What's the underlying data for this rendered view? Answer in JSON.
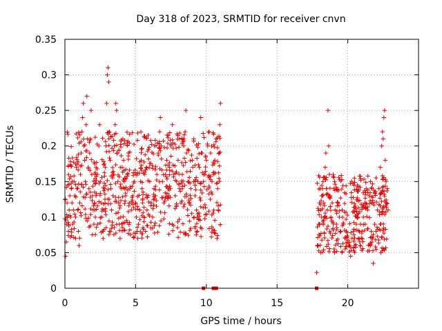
{
  "chart_data": {
    "type": "scatter",
    "title": "Day 318 of 2023, SRMTID for receiver cnvn",
    "xlabel": "GPS time / hours",
    "ylabel": "SRMTID / TECUs",
    "xlim": [
      0,
      25
    ],
    "ylim": [
      0,
      0.35
    ],
    "x_ticks": [
      0,
      5,
      10,
      15,
      20
    ],
    "x_tick_labels": [
      "0",
      "5",
      "10",
      "15",
      "20"
    ],
    "y_ticks": [
      0,
      0.05,
      0.1,
      0.15,
      0.2,
      0.25,
      0.3,
      0.35
    ],
    "y_tick_labels": [
      "0",
      "0.05",
      "0.1",
      "0.15",
      "0.2",
      "0.25",
      "0.3",
      "0.35"
    ],
    "grid": true,
    "marker": "plus",
    "series": [
      {
        "name": "SRMTID",
        "color": "#e00000",
        "points": [
          [
            0.05,
            0.045
          ],
          [
            0.1,
            0.065
          ],
          [
            0.12,
            0.09
          ],
          [
            0.15,
            0.12
          ],
          [
            0.2,
            0.1
          ],
          [
            0.25,
            0.08
          ],
          [
            0.3,
            0.11
          ],
          [
            0.35,
            0.13
          ],
          [
            0.4,
            0.1
          ],
          [
            0.45,
            0.14
          ],
          [
            0.5,
            0.12
          ],
          [
            0.55,
            0.09
          ],
          [
            0.6,
            0.11
          ],
          [
            0.65,
            0.15
          ],
          [
            0.7,
            0.13
          ],
          [
            0.75,
            0.1
          ],
          [
            0.8,
            0.17
          ],
          [
            0.85,
            0.14
          ],
          [
            0.9,
            0.11
          ],
          [
            0.95,
            0.08
          ],
          [
            1.0,
            0.06
          ],
          [
            1.05,
            0.12
          ],
          [
            1.1,
            0.16
          ],
          [
            1.15,
            0.19
          ],
          [
            1.2,
            0.22
          ],
          [
            1.25,
            0.24
          ],
          [
            1.3,
            0.26
          ],
          [
            1.35,
            0.2
          ],
          [
            1.4,
            0.18
          ],
          [
            1.45,
            0.15
          ],
          [
            1.5,
            0.23
          ],
          [
            1.55,
            0.27
          ],
          [
            1.6,
            0.21
          ],
          [
            1.65,
            0.17
          ],
          [
            1.7,
            0.14
          ],
          [
            1.75,
            0.19
          ],
          [
            1.8,
            0.21
          ],
          [
            1.85,
            0.25
          ],
          [
            1.9,
            0.16
          ],
          [
            1.95,
            0.13
          ],
          [
            2.0,
            0.11
          ],
          [
            2.05,
            0.09
          ],
          [
            2.1,
            0.12
          ],
          [
            2.15,
            0.1
          ],
          [
            2.2,
            0.13
          ],
          [
            2.3,
            0.16
          ],
          [
            2.4,
            0.2
          ],
          [
            2.45,
            0.23
          ],
          [
            2.5,
            0.15
          ],
          [
            2.55,
            0.12
          ],
          [
            2.6,
            0.1
          ],
          [
            2.65,
            0.08
          ],
          [
            2.7,
            0.07
          ],
          [
            2.75,
            0.11
          ],
          [
            2.8,
            0.14
          ],
          [
            2.85,
            0.17
          ],
          [
            2.9,
            0.2
          ],
          [
            2.95,
            0.26
          ],
          [
            3.0,
            0.3
          ],
          [
            3.05,
            0.31
          ],
          [
            3.1,
            0.29
          ],
          [
            3.15,
            0.22
          ],
          [
            3.2,
            0.18
          ],
          [
            3.25,
            0.14
          ],
          [
            3.3,
            0.11
          ],
          [
            3.4,
            0.13
          ],
          [
            3.45,
            0.16
          ],
          [
            3.5,
            0.2
          ],
          [
            3.55,
            0.23
          ],
          [
            3.6,
            0.26
          ],
          [
            3.65,
            0.25
          ],
          [
            3.7,
            0.19
          ],
          [
            3.75,
            0.15
          ],
          [
            3.8,
            0.12
          ],
          [
            3.85,
            0.09
          ],
          [
            3.9,
            0.07
          ],
          [
            3.95,
            0.1
          ],
          [
            4.0,
            0.14
          ],
          [
            4.05,
            0.17
          ],
          [
            4.1,
            0.21
          ],
          [
            4.15,
            0.18
          ],
          [
            4.2,
            0.15
          ],
          [
            4.3,
            0.13
          ],
          [
            4.4,
            0.16
          ],
          [
            4.5,
            0.19
          ],
          [
            4.6,
            0.14
          ],
          [
            4.7,
            0.11
          ],
          [
            4.8,
            0.13
          ],
          [
            4.9,
            0.15
          ],
          [
            5.0,
            0.12
          ],
          [
            5.05,
            0.1
          ],
          [
            5.1,
            0.08
          ],
          [
            5.15,
            0.07
          ],
          [
            5.2,
            0.09
          ],
          [
            5.3,
            0.11
          ],
          [
            5.35,
            0.15
          ],
          [
            5.4,
            0.18
          ],
          [
            5.45,
            0.14
          ],
          [
            5.5,
            0.12
          ],
          [
            5.6,
            0.1
          ],
          [
            5.7,
            0.08
          ],
          [
            5.8,
            0.11
          ],
          [
            5.9,
            0.13
          ],
          [
            6.0,
            0.15
          ],
          [
            6.1,
            0.12
          ],
          [
            6.2,
            0.1
          ],
          [
            6.3,
            0.14
          ],
          [
            6.4,
            0.13
          ],
          [
            6.5,
            0.16
          ],
          [
            6.6,
            0.19
          ],
          [
            6.7,
            0.22
          ],
          [
            6.75,
            0.24
          ],
          [
            6.8,
            0.2
          ],
          [
            6.9,
            0.15
          ],
          [
            7.0,
            0.12
          ],
          [
            7.1,
            0.16
          ],
          [
            7.2,
            0.18
          ],
          [
            7.3,
            0.14
          ],
          [
            7.4,
            0.17
          ],
          [
            7.5,
            0.2
          ],
          [
            7.6,
            0.23
          ],
          [
            7.7,
            0.16
          ],
          [
            7.8,
            0.13
          ],
          [
            7.9,
            0.15
          ],
          [
            8.0,
            0.18
          ],
          [
            8.1,
            0.14
          ],
          [
            8.2,
            0.12
          ],
          [
            8.3,
            0.16
          ],
          [
            8.4,
            0.2
          ],
          [
            8.5,
            0.22
          ],
          [
            8.55,
            0.25
          ],
          [
            8.6,
            0.19
          ],
          [
            8.7,
            0.15
          ],
          [
            8.8,
            0.12
          ],
          [
            8.9,
            0.14
          ],
          [
            9.0,
            0.18
          ],
          [
            9.1,
            0.21
          ],
          [
            9.2,
            0.13
          ],
          [
            9.3,
            0.11
          ],
          [
            9.4,
            0.15
          ],
          [
            9.5,
            0.17
          ],
          [
            9.6,
            0.24
          ],
          [
            9.7,
            0.19
          ],
          [
            9.8,
            0.15
          ],
          [
            9.9,
            0.16
          ],
          [
            10.0,
            0.18
          ],
          [
            10.1,
            0.2
          ],
          [
            10.2,
            0.22
          ],
          [
            10.3,
            0.19
          ],
          [
            10.4,
            0.15
          ],
          [
            10.5,
            0.16
          ],
          [
            10.6,
            0.18
          ],
          [
            10.7,
            0.21
          ],
          [
            10.8,
            0.14
          ],
          [
            10.85,
            0.11
          ],
          [
            10.9,
            0.19
          ],
          [
            10.95,
            0.23
          ],
          [
            11.0,
            0.26
          ],
          [
            17.8,
            0.022
          ],
          [
            17.9,
            0.06
          ],
          [
            17.95,
            0.09
          ],
          [
            18.0,
            0.12
          ],
          [
            18.05,
            0.14
          ],
          [
            18.1,
            0.11
          ],
          [
            18.15,
            0.1
          ],
          [
            18.2,
            0.13
          ],
          [
            18.25,
            0.15
          ],
          [
            18.3,
            0.12
          ],
          [
            18.35,
            0.1
          ],
          [
            18.4,
            0.17
          ],
          [
            18.45,
            0.19
          ],
          [
            18.5,
            0.14
          ],
          [
            18.55,
            0.11
          ],
          [
            18.6,
            0.25
          ],
          [
            18.65,
            0.2
          ],
          [
            18.7,
            0.16
          ],
          [
            18.75,
            0.13
          ],
          [
            18.8,
            0.1
          ],
          [
            18.9,
            0.12
          ],
          [
            19.0,
            0.14
          ],
          [
            19.1,
            0.11
          ],
          [
            19.2,
            0.09
          ],
          [
            19.3,
            0.12
          ],
          [
            19.4,
            0.1
          ],
          [
            19.5,
            0.08
          ],
          [
            19.6,
            0.11
          ],
          [
            19.7,
            0.09
          ],
          [
            19.8,
            0.07
          ],
          [
            19.9,
            0.08
          ],
          [
            20.0,
            0.065
          ],
          [
            20.1,
            0.06
          ],
          [
            20.2,
            0.045
          ],
          [
            20.3,
            0.07
          ],
          [
            20.4,
            0.08
          ],
          [
            20.5,
            0.06
          ],
          [
            20.6,
            0.09
          ],
          [
            20.7,
            0.1
          ],
          [
            20.8,
            0.07
          ],
          [
            20.9,
            0.06
          ],
          [
            21.0,
            0.08
          ],
          [
            21.1,
            0.1
          ],
          [
            21.2,
            0.12
          ],
          [
            21.3,
            0.14
          ],
          [
            21.4,
            0.11
          ],
          [
            21.5,
            0.13
          ],
          [
            21.6,
            0.15
          ],
          [
            21.7,
            0.12
          ],
          [
            21.8,
            0.035
          ],
          [
            21.9,
            0.09
          ],
          [
            22.0,
            0.08
          ],
          [
            22.1,
            0.11
          ],
          [
            22.2,
            0.14
          ],
          [
            22.3,
            0.17
          ],
          [
            22.4,
            0.2
          ],
          [
            22.45,
            0.22
          ],
          [
            22.5,
            0.21
          ],
          [
            22.55,
            0.24
          ],
          [
            22.6,
            0.25
          ],
          [
            22.65,
            0.18
          ],
          [
            22.7,
            0.15
          ],
          [
            22.75,
            0.12
          ],
          [
            22.8,
            0.14
          ],
          [
            22.85,
            0.11
          ]
        ],
        "bands": [
          {
            "x_start": 0.0,
            "x_end": 11.0,
            "y_low": 0.07,
            "y_high": 0.22,
            "count": 650,
            "seed": 11
          },
          {
            "x_start": 17.8,
            "x_end": 22.9,
            "y_low": 0.05,
            "y_high": 0.16,
            "count": 340,
            "seed": 29
          }
        ],
        "zero_points": [
          9.8,
          10.5,
          10.65,
          10.7,
          17.8
        ]
      }
    ]
  }
}
